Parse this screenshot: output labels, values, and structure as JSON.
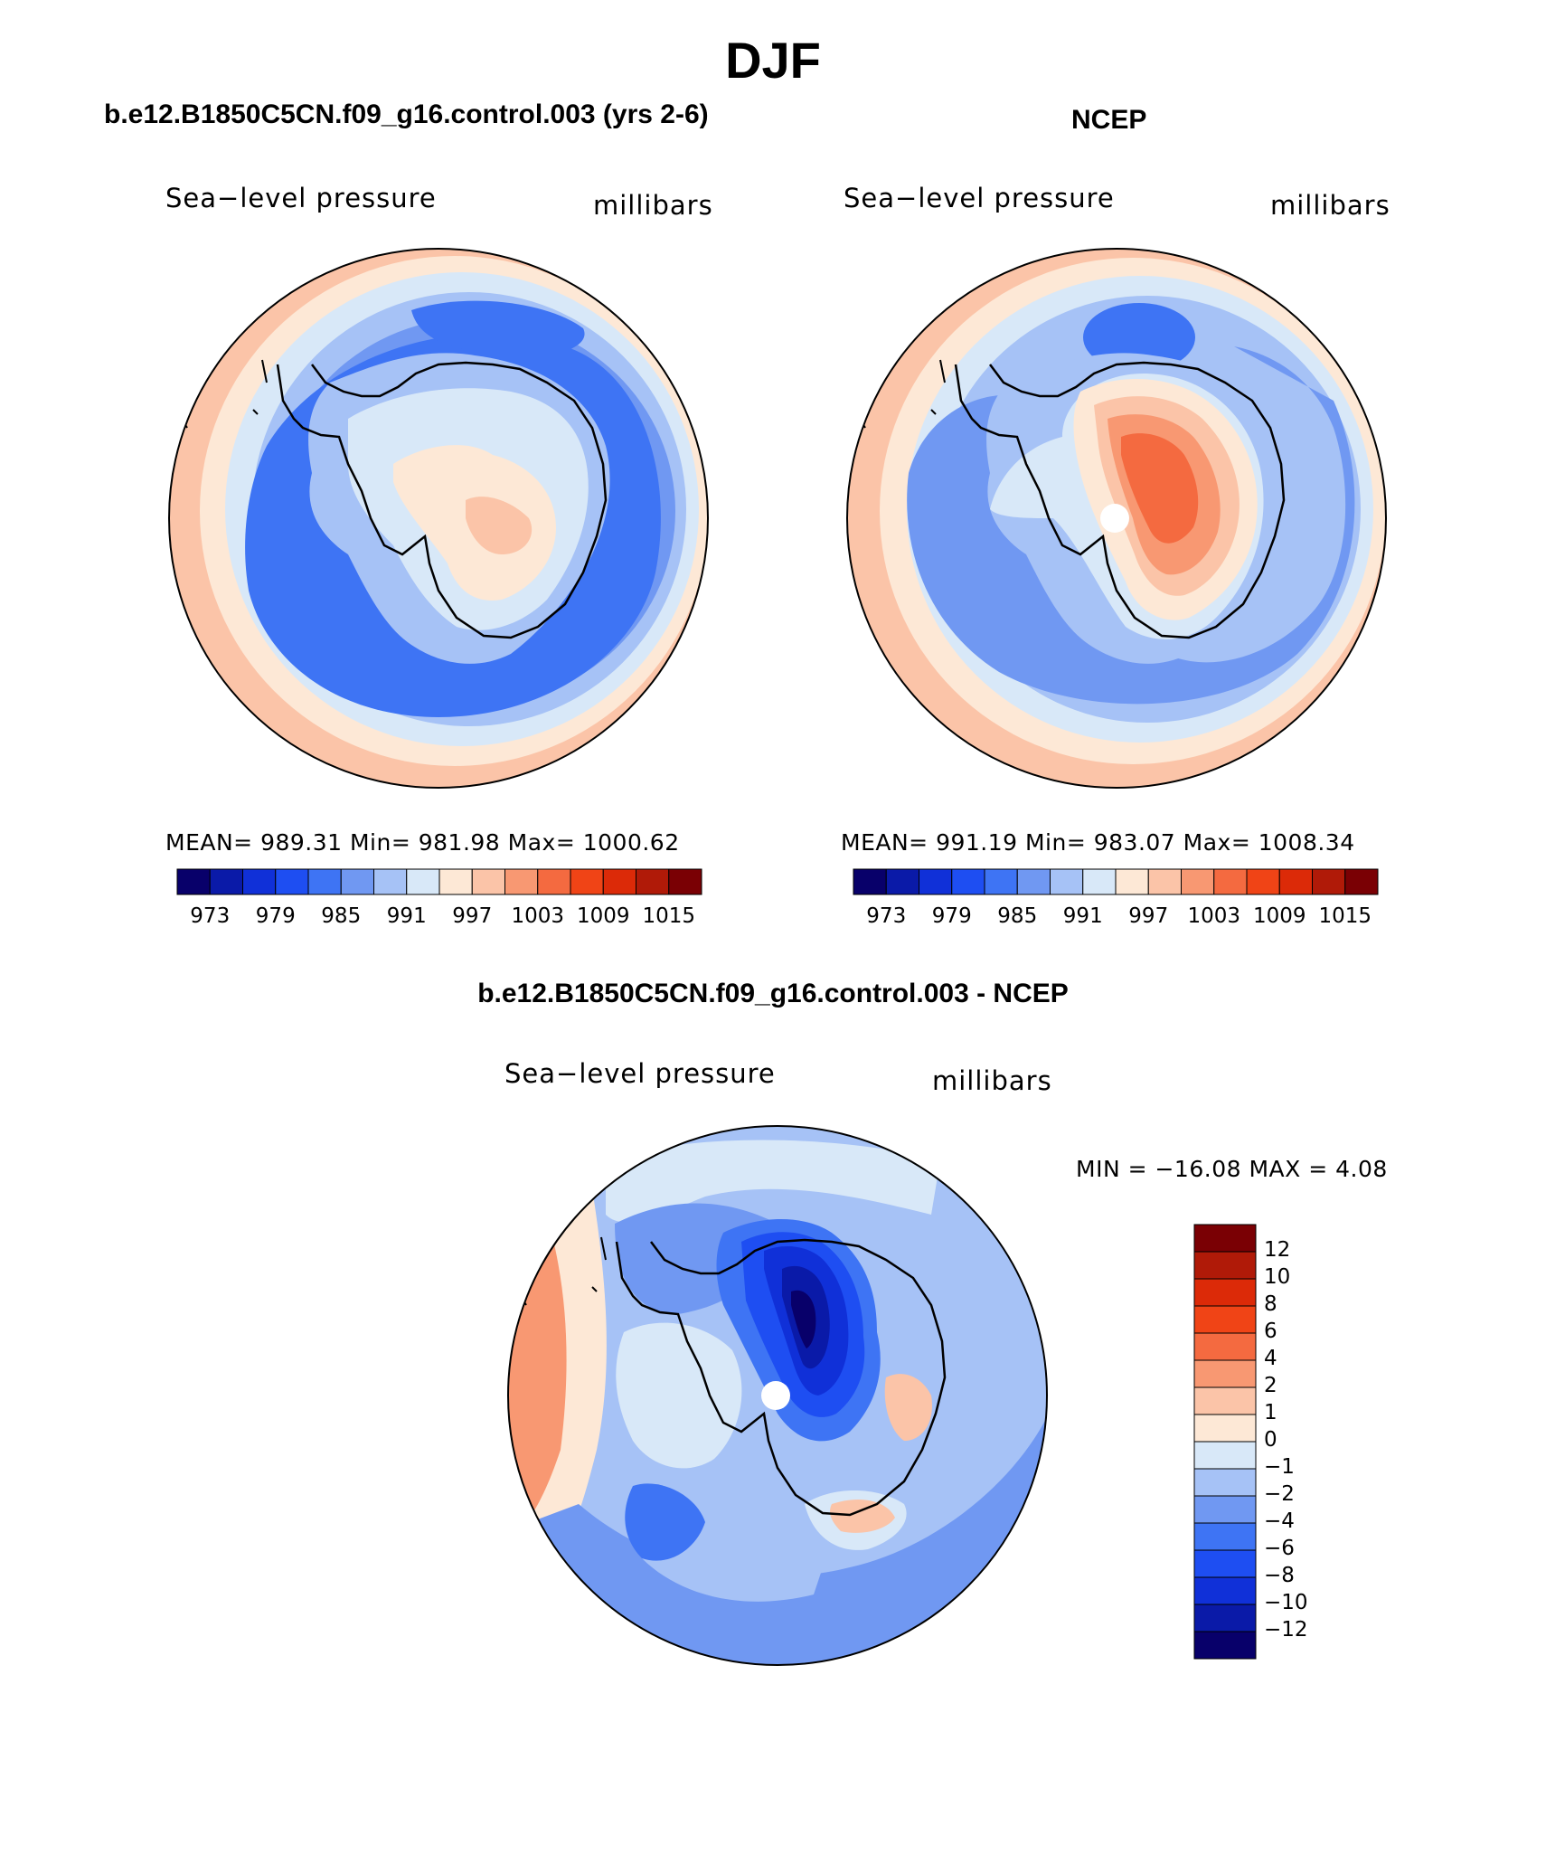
{
  "figure": {
    "title": "DJF",
    "variable_label": "Sea−level pressure",
    "units_label": "millibars"
  },
  "panels": {
    "model": {
      "title": "b.e12.B1850C5CN.f09_g16.control.003 (yrs 2-6)",
      "stats_text": "MEAN= 989.31   Min= 981.98   Max= 1000.62"
    },
    "obs": {
      "title": "NCEP",
      "stats_text": "MEAN= 991.19   Min= 983.07   Max= 1008.34"
    },
    "diff": {
      "title": "b.e12.B1850C5CN.f09_g16.control.003 - NCEP",
      "stats_text": "MIN = −16.08 MAX =    4.08"
    }
  },
  "abs_colorbar": {
    "colors": [
      "#08006a",
      "#0a1aa8",
      "#1030d8",
      "#1e4ef2",
      "#3e74f4",
      "#7098f2",
      "#a6c2f6",
      "#d8e8f8",
      "#fde8d6",
      "#fbc4a8",
      "#f89872",
      "#f46a40",
      "#f04416",
      "#dc2a08",
      "#b01a08",
      "#7a0004"
    ],
    "tick_labels": [
      "973",
      "979",
      "985",
      "991",
      "997",
      "1003",
      "1009",
      "1015"
    ]
  },
  "diff_colorbar": {
    "colors": [
      "#7a0004",
      "#b01a08",
      "#dc2a08",
      "#f04416",
      "#f46a40",
      "#f89872",
      "#fbc4a8",
      "#fde8d6",
      "#d8e8f8",
      "#a6c2f6",
      "#7098f2",
      "#3e74f4",
      "#1e4ef2",
      "#1030d8",
      "#0a1aa8",
      "#08006a"
    ],
    "tick_labels": [
      "12",
      "10",
      "8",
      "6",
      "4",
      "2",
      "1",
      "0",
      "−1",
      "−2",
      "−4",
      "−6",
      "−8",
      "−10",
      "−12"
    ]
  },
  "chart_data": [
    {
      "type": "heatmap",
      "title": "b.e12.B1850C5CN.f09_g16.control.003 (yrs 2-6)",
      "subtitle": "Sea−level pressure",
      "units": "millibars",
      "mean": 989.31,
      "min": 981.98,
      "max": 1000.62,
      "contour_levels": [
        973,
        976,
        979,
        982,
        985,
        988,
        991,
        994,
        997,
        1000,
        1003,
        1006,
        1009,
        1012,
        1015
      ]
    },
    {
      "type": "heatmap",
      "title": "NCEP",
      "subtitle": "Sea−level pressure",
      "units": "millibars",
      "mean": 991.19,
      "min": 983.07,
      "max": 1008.34,
      "contour_levels": [
        973,
        976,
        979,
        982,
        985,
        988,
        991,
        994,
        997,
        1000,
        1003,
        1006,
        1009,
        1012,
        1015
      ]
    },
    {
      "type": "heatmap",
      "title": "b.e12.B1850C5CN.f09_g16.control.003 - NCEP",
      "subtitle": "Sea−level pressure",
      "units": "millibars",
      "min": -16.08,
      "max": 4.08,
      "contour_levels": [
        -12,
        -10,
        -8,
        -6,
        -4,
        -2,
        -1,
        0,
        1,
        2,
        4,
        6,
        8,
        10,
        12
      ]
    }
  ]
}
